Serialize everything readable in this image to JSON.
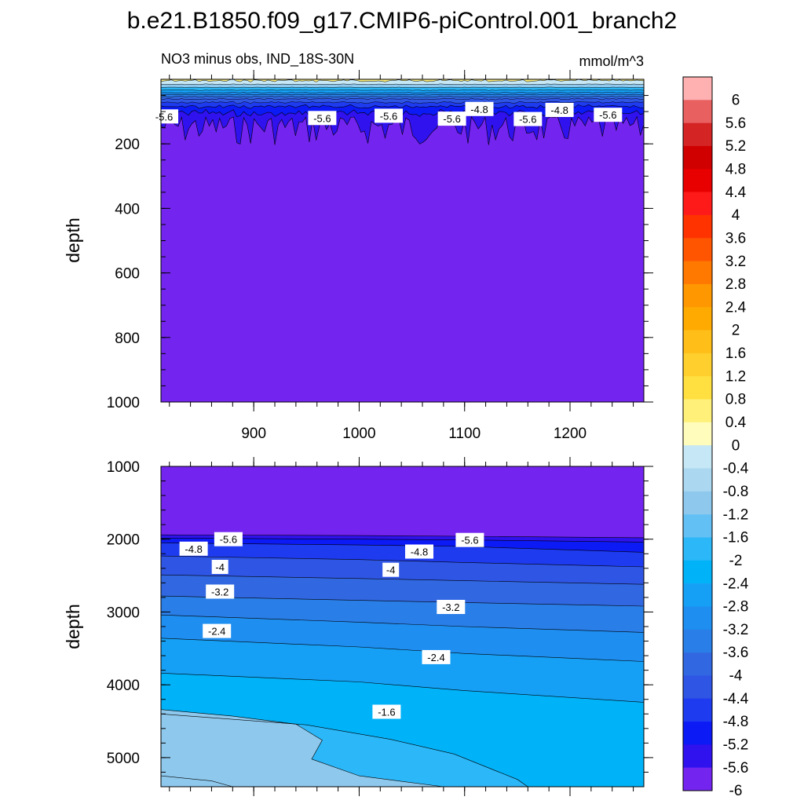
{
  "title": "b.e21.B1850.f09_g17.CMIP6-piControl.001_branch2",
  "subtitle_left": "NO3 minus obs, IND_18S-30N",
  "subtitle_right": "mmol/m^3",
  "chart_data": [
    {
      "type": "contour",
      "panel": "upper",
      "ylabel": "depth",
      "ylim": [
        1000,
        0
      ],
      "yticks": [
        "200",
        "400",
        "600",
        "800",
        "1000"
      ],
      "xlim": [
        812,
        1270
      ],
      "xticks": [
        "900",
        "1000",
        "1100",
        "1200"
      ],
      "contour_labels": [
        {
          "text": "-5.6",
          "x": 815,
          "y": 115
        },
        {
          "text": "-5.6",
          "x": 965,
          "y": 120
        },
        {
          "text": "-5.6",
          "x": 1028,
          "y": 113
        },
        {
          "text": "-5.6",
          "x": 1088,
          "y": 122
        },
        {
          "text": "-4.8",
          "x": 1114,
          "y": 92
        },
        {
          "text": "-5.6",
          "x": 1160,
          "y": 123
        },
        {
          "text": "-4.8",
          "x": 1190,
          "y": 95
        },
        {
          "text": "-5.6",
          "x": 1236,
          "y": 110
        }
      ]
    },
    {
      "type": "contour",
      "panel": "lower",
      "ylabel": "depth",
      "ylim": [
        5400,
        1000
      ],
      "yticks": [
        "1000",
        "2000",
        "3000",
        "4000",
        "5000"
      ],
      "xlim": [
        812,
        1270
      ],
      "contour_labels": [
        {
          "text": "-5.6",
          "x": 876,
          "y": 2000
        },
        {
          "text": "-4.8",
          "x": 843,
          "y": 2130
        },
        {
          "text": "-5.6",
          "x": 1105,
          "y": 2010
        },
        {
          "text": "-4.8",
          "x": 1057,
          "y": 2170
        },
        {
          "text": "-4",
          "x": 868,
          "y": 2380
        },
        {
          "text": "-4",
          "x": 1030,
          "y": 2420
        },
        {
          "text": "-3.2",
          "x": 868,
          "y": 2720
        },
        {
          "text": "-3.2",
          "x": 1087,
          "y": 2930
        },
        {
          "text": "-2.4",
          "x": 865,
          "y": 3260
        },
        {
          "text": "-2.4",
          "x": 1073,
          "y": 3620
        },
        {
          "text": "-1.6",
          "x": 1026,
          "y": 4370
        }
      ]
    }
  ],
  "colorbar": {
    "labels": [
      "6",
      "5.6",
      "5.2",
      "4.8",
      "4.4",
      "4",
      "3.6",
      "3.2",
      "2.8",
      "2.4",
      "2",
      "1.6",
      "1.2",
      "0.8",
      "0.4",
      "0",
      "-0.4",
      "-0.8",
      "-1.2",
      "-1.6",
      "-2",
      "-2.4",
      "-2.8",
      "-3.2",
      "-3.6",
      "-4",
      "-4.4",
      "-4.8",
      "-5.2",
      "-5.6",
      "-6"
    ],
    "colors": [
      "#ffb1b1",
      "#e86060",
      "#d42424",
      "#d00000",
      "#e80000",
      "#ff1a1a",
      "#ff3300",
      "#ff5500",
      "#ff7800",
      "#ff9800",
      "#ffaa00",
      "#ffbe18",
      "#ffcf2e",
      "#ffe040",
      "#fff07a",
      "#fffcbc",
      "#c6e7f5",
      "#abd8f0",
      "#8ec8ed",
      "#63c0f5",
      "#2cb7f8",
      "#00b2f8",
      "#16a0f5",
      "#1e8ef0",
      "#2a7ee8",
      "#3168e2",
      "#2f55e5",
      "#1e3bf0",
      "#0c1af5",
      "#2f12ee",
      "#7324ee"
    ]
  }
}
